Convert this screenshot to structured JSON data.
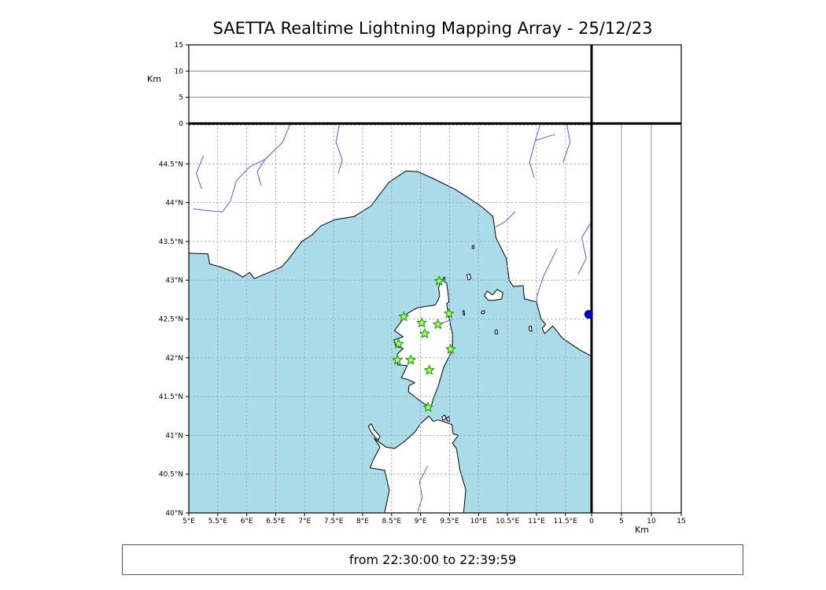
{
  "title": "SAETTA Realtime Lightning Mapping Array - 25/12/23",
  "footer": {
    "text": "from 22:30:00 to 22:39:59"
  },
  "colors": {
    "sea": "#aadce9",
    "land": "#ffffff",
    "coast": "#000000",
    "river": "#5b5bd0",
    "grid": "#999999",
    "panel_grid": "#777777",
    "frame": "#000000",
    "station_fill": "#ccff66",
    "station_stroke": "#22aa22",
    "source_dot": "#0000cc"
  },
  "alt_axis": {
    "label": "Km",
    "max": 15,
    "grid": [
      5,
      10
    ],
    "ticks": [
      {
        "v": 0,
        "label": "0"
      },
      {
        "v": 5,
        "label": "5"
      },
      {
        "v": 10,
        "label": "10"
      },
      {
        "v": 15,
        "label": "15"
      }
    ]
  },
  "map_axes": {
    "lat_ticks": [
      {
        "v": 44.5,
        "label": "44.5°N"
      },
      {
        "v": 44.0,
        "label": "44°N"
      },
      {
        "v": 43.5,
        "label": "43.5°N"
      },
      {
        "v": 43.0,
        "label": "43°N"
      },
      {
        "v": 42.5,
        "label": "42.5°N"
      },
      {
        "v": 42.0,
        "label": "42°N"
      },
      {
        "v": 41.5,
        "label": "41.5°N"
      },
      {
        "v": 41.0,
        "label": "41°N"
      },
      {
        "v": 40.5,
        "label": "40.5°N"
      },
      {
        "v": 40.0,
        "label": "40°N"
      }
    ],
    "lon_ticks": [
      {
        "v": 5.0,
        "label": "5°E"
      },
      {
        "v": 5.5,
        "label": "5.5°E"
      },
      {
        "v": 6.0,
        "label": "6°E"
      },
      {
        "v": 6.5,
        "label": "6.5°E"
      },
      {
        "v": 7.0,
        "label": "7°E"
      },
      {
        "v": 7.5,
        "label": "7.5°E"
      },
      {
        "v": 8.0,
        "label": "8°E"
      },
      {
        "v": 8.5,
        "label": "8.5°E"
      },
      {
        "v": 9.0,
        "label": "9°E"
      },
      {
        "v": 9.5,
        "label": "9.5°E"
      },
      {
        "v": 10.0,
        "label": "10°E"
      },
      {
        "v": 10.5,
        "label": "10.5°E"
      },
      {
        "v": 11.0,
        "label": "11°E"
      },
      {
        "v": 11.5,
        "label": "11.5°E"
      }
    ],
    "lat_grid": [
      40.5,
      41,
      41.5,
      42,
      42.5,
      43,
      43.5,
      44,
      44.5,
      45
    ],
    "lon_grid": [
      5.5,
      6,
      6.5,
      7,
      7.5,
      8,
      8.5,
      9,
      9.5,
      10,
      10.5,
      11,
      11.5
    ]
  },
  "stations": [
    {
      "lon": 9.32,
      "lat": 42.99
    },
    {
      "lon": 8.71,
      "lat": 42.53
    },
    {
      "lon": 9.02,
      "lat": 42.45
    },
    {
      "lon": 9.3,
      "lat": 42.43
    },
    {
      "lon": 9.49,
      "lat": 42.57
    },
    {
      "lon": 9.07,
      "lat": 42.31
    },
    {
      "lon": 8.62,
      "lat": 42.18
    },
    {
      "lon": 9.52,
      "lat": 42.11
    },
    {
      "lon": 8.6,
      "lat": 41.97
    },
    {
      "lon": 8.83,
      "lat": 41.97
    },
    {
      "lon": 9.15,
      "lat": 41.84
    },
    {
      "lon": 9.13,
      "lat": 41.36
    }
  ],
  "sources": [
    {
      "lon": 11.9,
      "lat": 42.56
    }
  ],
  "geography": {
    "land": [
      [
        [
          4.9,
          43.35
        ],
        [
          5.33,
          43.34
        ],
        [
          5.36,
          43.21
        ],
        [
          5.55,
          43.17
        ],
        [
          5.8,
          43.1
        ],
        [
          5.93,
          43.04
        ],
        [
          6.05,
          43.1
        ],
        [
          6.13,
          43.02
        ],
        [
          6.35,
          43.09
        ],
        [
          6.6,
          43.17
        ],
        [
          6.72,
          43.27
        ],
        [
          6.95,
          43.5
        ],
        [
          7.12,
          43.58
        ],
        [
          7.28,
          43.7
        ],
        [
          7.52,
          43.78
        ],
        [
          7.85,
          43.82
        ],
        [
          8.15,
          43.96
        ],
        [
          8.45,
          44.26
        ],
        [
          8.75,
          44.41
        ],
        [
          8.95,
          44.4
        ],
        [
          9.22,
          44.31
        ],
        [
          9.6,
          44.17
        ],
        [
          9.85,
          44.05
        ],
        [
          10.05,
          43.95
        ],
        [
          10.25,
          43.82
        ],
        [
          10.3,
          43.55
        ],
        [
          10.48,
          43.28
        ],
        [
          10.53,
          43.0
        ],
        [
          10.6,
          42.92
        ],
        [
          10.77,
          42.93
        ],
        [
          10.79,
          42.76
        ],
        [
          11.0,
          42.72
        ],
        [
          11.08,
          42.5
        ],
        [
          11.16,
          42.43
        ],
        [
          11.1,
          42.38
        ],
        [
          11.14,
          42.31
        ],
        [
          11.28,
          42.41
        ],
        [
          11.45,
          42.25
        ],
        [
          11.75,
          42.1
        ],
        [
          12.05,
          41.98
        ],
        [
          12.05,
          45.2
        ],
        [
          4.9,
          45.2
        ]
      ],
      [
        [
          9.36,
          43.01
        ],
        [
          9.45,
          42.96
        ],
        [
          9.47,
          42.85
        ],
        [
          9.49,
          42.72
        ],
        [
          9.45,
          42.7
        ],
        [
          9.48,
          42.55
        ],
        [
          9.55,
          42.3
        ],
        [
          9.55,
          42.1
        ],
        [
          9.4,
          41.88
        ],
        [
          9.33,
          41.7
        ],
        [
          9.3,
          41.62
        ],
        [
          9.28,
          41.59
        ],
        [
          9.22,
          41.47
        ],
        [
          9.18,
          41.37
        ],
        [
          9.1,
          41.39
        ],
        [
          8.98,
          41.45
        ],
        [
          8.88,
          41.51
        ],
        [
          8.79,
          41.56
        ],
        [
          8.8,
          41.64
        ],
        [
          8.9,
          41.68
        ],
        [
          8.78,
          41.72
        ],
        [
          8.67,
          41.74
        ],
        [
          8.77,
          41.9
        ],
        [
          8.6,
          41.91
        ],
        [
          8.6,
          42.05
        ],
        [
          8.7,
          42.12
        ],
        [
          8.57,
          42.15
        ],
        [
          8.54,
          42.23
        ],
        [
          8.7,
          42.27
        ],
        [
          8.55,
          42.35
        ],
        [
          8.62,
          42.42
        ],
        [
          8.72,
          42.52
        ],
        [
          8.77,
          42.57
        ],
        [
          8.93,
          42.64
        ],
        [
          9.06,
          42.66
        ],
        [
          9.25,
          42.68
        ],
        [
          9.3,
          42.74
        ],
        [
          9.33,
          42.8
        ],
        [
          9.31,
          42.9
        ]
      ],
      [
        [
          8.35,
          39.9
        ],
        [
          8.46,
          40.29
        ],
        [
          8.38,
          40.55
        ],
        [
          8.13,
          40.58
        ],
        [
          8.18,
          40.68
        ],
        [
          8.3,
          40.85
        ],
        [
          8.2,
          40.96
        ],
        [
          8.4,
          40.85
        ],
        [
          8.55,
          40.83
        ],
        [
          8.72,
          40.92
        ],
        [
          8.9,
          41.04
        ],
        [
          9.0,
          41.15
        ],
        [
          9.14,
          41.25
        ],
        [
          9.22,
          41.18
        ],
        [
          9.3,
          41.2
        ],
        [
          9.42,
          41.17
        ],
        [
          9.54,
          41.14
        ],
        [
          9.56,
          41.02
        ],
        [
          9.65,
          41.0
        ],
        [
          9.55,
          40.9
        ],
        [
          9.62,
          40.83
        ],
        [
          9.68,
          40.55
        ],
        [
          9.78,
          40.3
        ],
        [
          9.73,
          39.9
        ]
      ],
      [
        [
          10.1,
          42.8
        ],
        [
          10.15,
          42.86
        ],
        [
          10.24,
          42.81
        ],
        [
          10.32,
          42.88
        ],
        [
          10.42,
          42.84
        ],
        [
          10.4,
          42.76
        ],
        [
          10.28,
          42.74
        ],
        [
          10.17,
          42.74
        ]
      ],
      [
        [
          9.8,
          43.07
        ],
        [
          9.85,
          43.08
        ],
        [
          9.87,
          43.02
        ],
        [
          9.82,
          43.0
        ]
      ],
      [
        [
          9.89,
          43.44
        ],
        [
          9.92,
          43.45
        ],
        [
          9.92,
          43.41
        ],
        [
          9.89,
          43.41
        ]
      ],
      [
        [
          10.06,
          42.6
        ],
        [
          10.1,
          42.61
        ],
        [
          10.1,
          42.57
        ],
        [
          10.05,
          42.57
        ]
      ],
      [
        [
          10.28,
          42.35
        ],
        [
          10.32,
          42.36
        ],
        [
          10.33,
          42.31
        ],
        [
          10.29,
          42.31
        ]
      ],
      [
        [
          10.87,
          42.4
        ],
        [
          10.91,
          42.41
        ],
        [
          10.92,
          42.34
        ],
        [
          10.88,
          42.35
        ]
      ],
      [
        [
          9.39,
          43.03
        ],
        [
          9.42,
          43.04
        ],
        [
          9.42,
          43.01
        ],
        [
          9.39,
          43.01
        ]
      ],
      [
        [
          9.73,
          42.6
        ],
        [
          9.75,
          42.61
        ],
        [
          9.76,
          42.55
        ],
        [
          9.74,
          42.55
        ]
      ],
      [
        [
          8.1,
          41.12
        ],
        [
          8.14,
          41.05
        ],
        [
          8.21,
          40.98
        ],
        [
          8.27,
          40.94
        ],
        [
          8.3,
          40.99
        ],
        [
          8.2,
          41.07
        ],
        [
          8.15,
          41.15
        ]
      ],
      [
        [
          9.37,
          41.24
        ],
        [
          9.42,
          41.26
        ],
        [
          9.44,
          41.21
        ],
        [
          9.38,
          41.2
        ]
      ],
      [
        [
          9.45,
          41.23
        ],
        [
          9.49,
          41.24
        ],
        [
          9.5,
          41.18
        ],
        [
          9.46,
          41.19
        ]
      ]
    ],
    "rivers": [
      [
        [
          6.8,
          45.1
        ],
        [
          6.62,
          44.78
        ],
        [
          6.32,
          44.56
        ],
        [
          6.05,
          44.46
        ],
        [
          5.82,
          44.28
        ],
        [
          5.72,
          44.02
        ],
        [
          5.58,
          43.88
        ],
        [
          5.3,
          43.9
        ],
        [
          5.08,
          43.92
        ]
      ],
      [
        [
          6.32,
          44.56
        ],
        [
          6.18,
          44.4
        ],
        [
          6.25,
          44.22
        ]
      ],
      [
        [
          5.25,
          44.6
        ],
        [
          5.13,
          44.38
        ],
        [
          5.22,
          44.18
        ]
      ],
      [
        [
          7.62,
          45.1
        ],
        [
          7.54,
          44.78
        ],
        [
          7.65,
          44.55
        ],
        [
          7.58,
          44.38
        ]
      ],
      [
        [
          11.1,
          45.1
        ],
        [
          10.98,
          44.8
        ],
        [
          10.88,
          44.52
        ],
        [
          10.96,
          44.32
        ]
      ],
      [
        [
          11.32,
          44.88
        ],
        [
          10.98,
          44.8
        ]
      ],
      [
        [
          11.5,
          45.1
        ],
        [
          11.58,
          44.78
        ],
        [
          11.46,
          44.52
        ]
      ],
      [
        [
          10.63,
          43.88
        ],
        [
          10.45,
          43.75
        ],
        [
          10.28,
          43.68
        ]
      ],
      [
        [
          11.35,
          43.4
        ],
        [
          11.12,
          43.05
        ],
        [
          11.0,
          42.78
        ],
        [
          11.01,
          42.72
        ]
      ],
      [
        [
          11.95,
          43.75
        ],
        [
          11.78,
          43.55
        ],
        [
          11.86,
          43.28
        ],
        [
          11.72,
          43.08
        ]
      ],
      [
        [
          9.12,
          40.6
        ],
        [
          8.98,
          40.4
        ],
        [
          9.03,
          40.2
        ],
        [
          8.95,
          40.02
        ]
      ],
      [
        [
          9.28,
          42.42
        ],
        [
          9.45,
          42.47
        ],
        [
          9.54,
          42.49
        ]
      ]
    ]
  }
}
